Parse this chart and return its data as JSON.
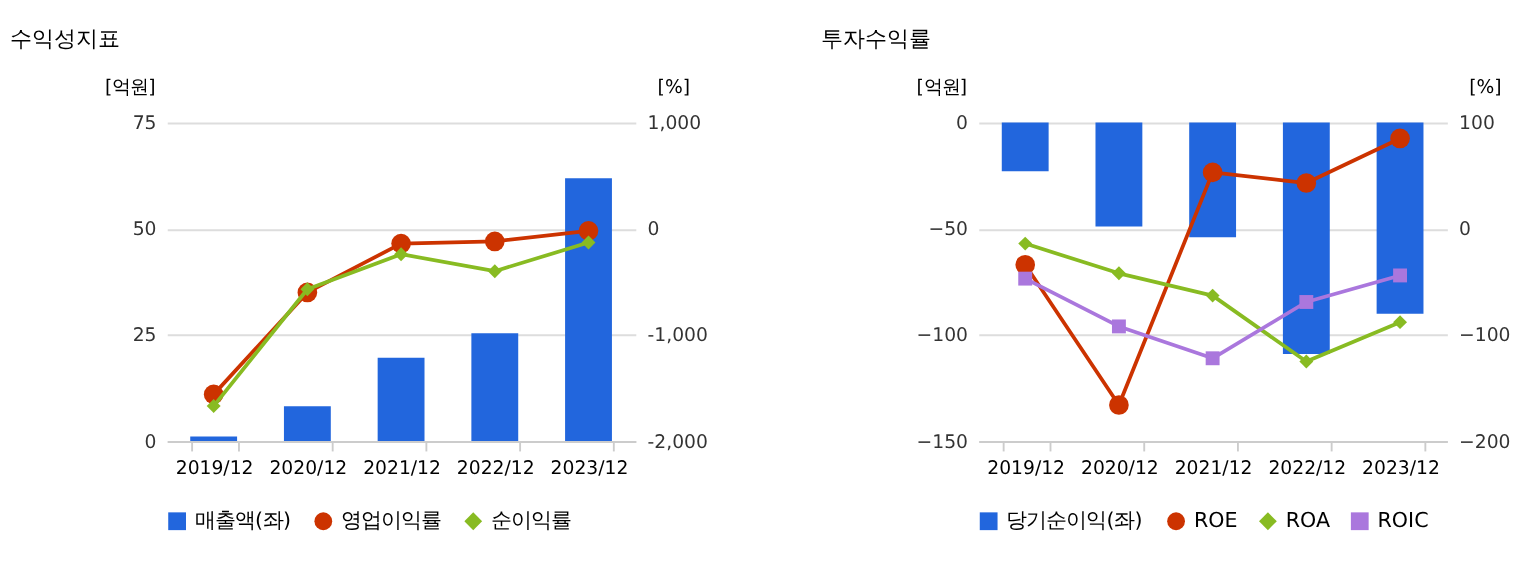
{
  "chart_data": [
    {
      "type": "bar",
      "title": "수익성지표",
      "ylabel": "[억원]",
      "y2label": "[%]",
      "categories": [
        "2019/12",
        "2020/12",
        "2021/12",
        "2022/12",
        "2023/12"
      ],
      "series": [
        {
          "name": "매출액(좌)",
          "color": "#2266dd",
          "values": [
            1.1,
            8.2,
            19.6,
            25.4,
            61.9
          ]
        },
        {
          "name": "영업이익률",
          "type": "line",
          "axis": "y2",
          "marker": "circle",
          "color": "#cc3300",
          "values": [
            -1560,
            -600,
            -140,
            -120,
            -20
          ]
        },
        {
          "name": "순이익률",
          "type": "line",
          "axis": "y2",
          "marker": "diamond",
          "color": "#88bb22",
          "values": [
            -1670,
            -570,
            -240,
            -400,
            -130
          ]
        }
      ],
      "ylim": [
        0,
        75
      ],
      "yticks": [
        0,
        25,
        50,
        75
      ],
      "y2lim": [
        -2000,
        1000
      ],
      "y2ticks": [
        {
          "value": -2000,
          "label": "-2,000"
        },
        {
          "value": -1000,
          "label": "-1,000"
        },
        0,
        {
          "value": 1000,
          "label": "1,000"
        }
      ],
      "grid": "y",
      "legend": "bottom"
    },
    {
      "type": "bar",
      "title": "투자수익률",
      "ylabel": "[억원]",
      "y2label": "[%]",
      "categories": [
        "2019/12",
        "2020/12",
        "2021/12",
        "2022/12",
        "2023/12"
      ],
      "series": [
        {
          "name": "당기순이익(좌)",
          "color": "#2266dd",
          "values": [
            -23,
            -49,
            -54,
            -109,
            -90
          ]
        },
        {
          "name": "ROE",
          "type": "line",
          "axis": "y2",
          "marker": "circle",
          "color": "#cc3300",
          "values": [
            -34,
            -166,
            53,
            43,
            85
          ]
        },
        {
          "name": "ROA",
          "type": "line",
          "axis": "y2",
          "marker": "diamond",
          "color": "#88bb22",
          "values": [
            -14,
            -42,
            -63,
            -125,
            -88
          ]
        },
        {
          "name": "ROIC",
          "type": "line",
          "axis": "y2",
          "marker": "square",
          "color": "#aa77dd",
          "values": [
            -47,
            -92,
            -122,
            -69,
            -44
          ]
        }
      ],
      "ylim": [
        -150,
        0
      ],
      "yticks": [
        -150,
        -100,
        -50,
        0
      ],
      "y2lim": [
        -200,
        100
      ],
      "y2ticks": [
        -200,
        -100,
        0,
        100
      ],
      "grid": "y",
      "legend": "bottom"
    }
  ]
}
